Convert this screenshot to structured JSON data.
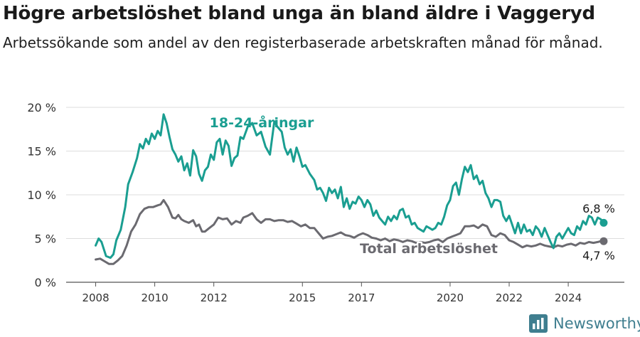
{
  "header": {
    "title": "Högre arbetslöshet bland unga än bland äldre i Vaggeryd",
    "subtitle": "Arbetssökande som andel av den registerbaserade arbetskraften månad för månad."
  },
  "brand": {
    "name": "Newsworthy"
  },
  "colors": {
    "young": "#1a9e91",
    "total": "#6b6a70",
    "grid": "#dddddd",
    "axis": "#444444",
    "brand": "#3f7e8f"
  },
  "chart_data": {
    "type": "line",
    "title": "Högre arbetslöshet bland unga än bland äldre i Vaggeryd",
    "subtitle": "Arbetssökande som andel av den registerbaserade arbetskraften månad för månad.",
    "xlabel": "",
    "ylabel": "",
    "xlim": [
      2007.0,
      2025.9
    ],
    "ylim": [
      0,
      20
    ],
    "grid": true,
    "x_ticks": [
      {
        "value": 2008,
        "label": "2008"
      },
      {
        "value": 2010,
        "label": "2010"
      },
      {
        "value": 2012,
        "label": "2012"
      },
      {
        "value": 2015,
        "label": "2015"
      },
      {
        "value": 2017,
        "label": "2017"
      },
      {
        "value": 2020,
        "label": "2020"
      },
      {
        "value": 2022,
        "label": "2022"
      },
      {
        "value": 2024,
        "label": "2024"
      }
    ],
    "y_ticks": [
      {
        "value": 0,
        "label": "0 %"
      },
      {
        "value": 5,
        "label": "5 %"
      },
      {
        "value": 10,
        "label": "10 %"
      },
      {
        "value": 15,
        "label": "15 %"
      },
      {
        "value": 20,
        "label": "20 %"
      }
    ],
    "series": [
      {
        "name": "18-24-åringar",
        "label": "18-24-åringar",
        "end_label": "6,8 %",
        "color": "#1a9e91",
        "points": [
          [
            2008.0,
            4.2
          ],
          [
            2008.1,
            5.0
          ],
          [
            2008.2,
            4.6
          ],
          [
            2008.35,
            3.0
          ],
          [
            2008.5,
            2.8
          ],
          [
            2008.6,
            3.2
          ],
          [
            2008.7,
            4.8
          ],
          [
            2008.85,
            6.0
          ],
          [
            2009.0,
            8.6
          ],
          [
            2009.1,
            11.2
          ],
          [
            2009.25,
            12.6
          ],
          [
            2009.4,
            14.2
          ],
          [
            2009.5,
            15.8
          ],
          [
            2009.6,
            15.3
          ],
          [
            2009.7,
            16.4
          ],
          [
            2009.8,
            15.8
          ],
          [
            2009.9,
            17.0
          ],
          [
            2010.0,
            16.4
          ],
          [
            2010.1,
            17.3
          ],
          [
            2010.2,
            16.8
          ],
          [
            2010.3,
            19.2
          ],
          [
            2010.4,
            18.2
          ],
          [
            2010.5,
            16.6
          ],
          [
            2010.6,
            15.2
          ],
          [
            2010.7,
            14.6
          ],
          [
            2010.8,
            13.8
          ],
          [
            2010.9,
            14.4
          ],
          [
            2011.0,
            12.8
          ],
          [
            2011.1,
            13.6
          ],
          [
            2011.2,
            12.2
          ],
          [
            2011.3,
            15.1
          ],
          [
            2011.4,
            14.4
          ],
          [
            2011.5,
            12.4
          ],
          [
            2011.6,
            11.6
          ],
          [
            2011.7,
            12.8
          ],
          [
            2011.8,
            13.2
          ],
          [
            2011.9,
            14.6
          ],
          [
            2012.0,
            14.0
          ],
          [
            2012.1,
            16.0
          ],
          [
            2012.2,
            16.4
          ],
          [
            2012.3,
            14.6
          ],
          [
            2012.4,
            16.2
          ],
          [
            2012.5,
            15.6
          ],
          [
            2012.6,
            13.3
          ],
          [
            2012.7,
            14.2
          ],
          [
            2012.8,
            14.5
          ],
          [
            2012.9,
            16.6
          ],
          [
            2013.0,
            16.4
          ],
          [
            2013.15,
            17.8
          ],
          [
            2013.3,
            18.2
          ],
          [
            2013.45,
            16.8
          ],
          [
            2013.6,
            17.2
          ],
          [
            2013.75,
            15.5
          ],
          [
            2013.9,
            14.6
          ],
          [
            2014.05,
            18.4
          ],
          [
            2014.15,
            17.8
          ],
          [
            2014.3,
            17.2
          ],
          [
            2014.4,
            15.4
          ],
          [
            2014.5,
            14.6
          ],
          [
            2014.6,
            15.2
          ],
          [
            2014.7,
            13.8
          ],
          [
            2014.8,
            15.4
          ],
          [
            2014.9,
            14.4
          ],
          [
            2015.0,
            13.2
          ],
          [
            2015.1,
            13.4
          ],
          [
            2015.25,
            12.4
          ],
          [
            2015.4,
            11.7
          ],
          [
            2015.5,
            10.6
          ],
          [
            2015.6,
            10.8
          ],
          [
            2015.7,
            10.2
          ],
          [
            2015.8,
            9.3
          ],
          [
            2015.9,
            10.8
          ],
          [
            2016.0,
            10.2
          ],
          [
            2016.1,
            10.6
          ],
          [
            2016.2,
            9.6
          ],
          [
            2016.3,
            10.9
          ],
          [
            2016.4,
            8.6
          ],
          [
            2016.5,
            9.6
          ],
          [
            2016.6,
            8.4
          ],
          [
            2016.7,
            9.2
          ],
          [
            2016.8,
            9.0
          ],
          [
            2016.9,
            9.8
          ],
          [
            2017.0,
            9.4
          ],
          [
            2017.1,
            8.6
          ],
          [
            2017.2,
            9.4
          ],
          [
            2017.3,
            8.9
          ],
          [
            2017.4,
            7.6
          ],
          [
            2017.5,
            8.2
          ],
          [
            2017.6,
            7.4
          ],
          [
            2017.7,
            7.0
          ],
          [
            2017.8,
            6.6
          ],
          [
            2017.9,
            7.5
          ],
          [
            2018.0,
            7.0
          ],
          [
            2018.1,
            7.6
          ],
          [
            2018.2,
            7.2
          ],
          [
            2018.3,
            8.2
          ],
          [
            2018.4,
            8.4
          ],
          [
            2018.5,
            7.4
          ],
          [
            2018.6,
            7.6
          ],
          [
            2018.7,
            6.6
          ],
          [
            2018.8,
            6.8
          ],
          [
            2018.9,
            6.2
          ],
          [
            2019.0,
            6.0
          ],
          [
            2019.1,
            5.8
          ],
          [
            2019.2,
            6.4
          ],
          [
            2019.3,
            6.2
          ],
          [
            2019.4,
            6.0
          ],
          [
            2019.5,
            6.2
          ],
          [
            2019.6,
            6.8
          ],
          [
            2019.7,
            6.6
          ],
          [
            2019.8,
            7.5
          ],
          [
            2019.9,
            8.8
          ],
          [
            2020.0,
            9.4
          ],
          [
            2020.1,
            11.0
          ],
          [
            2020.2,
            11.4
          ],
          [
            2020.3,
            10.0
          ],
          [
            2020.4,
            11.8
          ],
          [
            2020.5,
            13.2
          ],
          [
            2020.6,
            12.6
          ],
          [
            2020.7,
            13.4
          ],
          [
            2020.8,
            11.8
          ],
          [
            2020.9,
            12.2
          ],
          [
            2021.0,
            11.2
          ],
          [
            2021.1,
            11.6
          ],
          [
            2021.2,
            10.2
          ],
          [
            2021.3,
            9.6
          ],
          [
            2021.4,
            8.6
          ],
          [
            2021.5,
            9.4
          ],
          [
            2021.6,
            9.4
          ],
          [
            2021.7,
            9.2
          ],
          [
            2021.8,
            7.6
          ],
          [
            2021.9,
            7.0
          ],
          [
            2022.0,
            7.6
          ],
          [
            2022.1,
            6.6
          ],
          [
            2022.2,
            5.6
          ],
          [
            2022.3,
            6.8
          ],
          [
            2022.4,
            5.6
          ],
          [
            2022.5,
            6.6
          ],
          [
            2022.6,
            5.8
          ],
          [
            2022.7,
            6.0
          ],
          [
            2022.8,
            5.4
          ],
          [
            2022.9,
            6.4
          ],
          [
            2023.0,
            6.0
          ],
          [
            2023.1,
            5.2
          ],
          [
            2023.2,
            6.2
          ],
          [
            2023.3,
            5.4
          ],
          [
            2023.4,
            4.6
          ],
          [
            2023.5,
            3.9
          ],
          [
            2023.6,
            5.2
          ],
          [
            2023.7,
            5.6
          ],
          [
            2023.8,
            5.0
          ],
          [
            2023.9,
            5.6
          ],
          [
            2024.0,
            6.2
          ],
          [
            2024.1,
            5.6
          ],
          [
            2024.2,
            5.4
          ],
          [
            2024.3,
            6.4
          ],
          [
            2024.4,
            6.0
          ],
          [
            2024.5,
            7.0
          ],
          [
            2024.6,
            6.6
          ],
          [
            2024.7,
            7.6
          ],
          [
            2024.8,
            7.4
          ],
          [
            2024.9,
            6.6
          ],
          [
            2025.0,
            7.4
          ],
          [
            2025.1,
            7.2
          ],
          [
            2025.2,
            6.8
          ]
        ]
      },
      {
        "name": "Total arbetslöshet",
        "label": "Total arbetslöshet",
        "end_label": "4,7 %",
        "color": "#6b6a70",
        "points": [
          [
            2008.0,
            2.6
          ],
          [
            2008.15,
            2.7
          ],
          [
            2008.3,
            2.4
          ],
          [
            2008.45,
            2.1
          ],
          [
            2008.6,
            2.1
          ],
          [
            2008.75,
            2.5
          ],
          [
            2008.9,
            3.0
          ],
          [
            2009.05,
            4.2
          ],
          [
            2009.2,
            5.8
          ],
          [
            2009.35,
            6.6
          ],
          [
            2009.5,
            7.8
          ],
          [
            2009.65,
            8.4
          ],
          [
            2009.8,
            8.6
          ],
          [
            2009.95,
            8.6
          ],
          [
            2010.1,
            8.8
          ],
          [
            2010.2,
            8.9
          ],
          [
            2010.3,
            9.4
          ],
          [
            2010.45,
            8.6
          ],
          [
            2010.6,
            7.4
          ],
          [
            2010.7,
            7.3
          ],
          [
            2010.8,
            7.7
          ],
          [
            2010.9,
            7.2
          ],
          [
            2011.0,
            7.0
          ],
          [
            2011.15,
            6.8
          ],
          [
            2011.3,
            7.1
          ],
          [
            2011.4,
            6.4
          ],
          [
            2011.5,
            6.6
          ],
          [
            2011.6,
            5.8
          ],
          [
            2011.7,
            5.8
          ],
          [
            2011.85,
            6.2
          ],
          [
            2012.0,
            6.6
          ],
          [
            2012.15,
            7.4
          ],
          [
            2012.3,
            7.2
          ],
          [
            2012.45,
            7.3
          ],
          [
            2012.6,
            6.6
          ],
          [
            2012.75,
            7.0
          ],
          [
            2012.9,
            6.8
          ],
          [
            2013.0,
            7.4
          ],
          [
            2013.15,
            7.6
          ],
          [
            2013.3,
            7.9
          ],
          [
            2013.45,
            7.2
          ],
          [
            2013.6,
            6.8
          ],
          [
            2013.75,
            7.2
          ],
          [
            2013.9,
            7.2
          ],
          [
            2014.05,
            7.0
          ],
          [
            2014.2,
            7.1
          ],
          [
            2014.35,
            7.1
          ],
          [
            2014.5,
            6.9
          ],
          [
            2014.65,
            7.0
          ],
          [
            2014.8,
            6.7
          ],
          [
            2014.95,
            6.4
          ],
          [
            2015.1,
            6.6
          ],
          [
            2015.25,
            6.2
          ],
          [
            2015.4,
            6.2
          ],
          [
            2015.55,
            5.6
          ],
          [
            2015.7,
            5.0
          ],
          [
            2015.85,
            5.2
          ],
          [
            2016.0,
            5.3
          ],
          [
            2016.15,
            5.5
          ],
          [
            2016.3,
            5.7
          ],
          [
            2016.45,
            5.4
          ],
          [
            2016.6,
            5.3
          ],
          [
            2016.75,
            5.1
          ],
          [
            2016.9,
            5.4
          ],
          [
            2017.05,
            5.6
          ],
          [
            2017.2,
            5.4
          ],
          [
            2017.35,
            5.1
          ],
          [
            2017.5,
            5.0
          ],
          [
            2017.65,
            4.8
          ],
          [
            2017.8,
            5.0
          ],
          [
            2017.95,
            4.7
          ],
          [
            2018.1,
            4.9
          ],
          [
            2018.25,
            4.8
          ],
          [
            2018.4,
            4.6
          ],
          [
            2018.55,
            4.8
          ],
          [
            2018.7,
            4.7
          ],
          [
            2018.85,
            4.5
          ],
          [
            2019.0,
            4.6
          ],
          [
            2019.15,
            4.5
          ],
          [
            2019.3,
            4.6
          ],
          [
            2019.45,
            4.8
          ],
          [
            2019.6,
            4.9
          ],
          [
            2019.75,
            4.6
          ],
          [
            2019.9,
            5.0
          ],
          [
            2020.05,
            5.2
          ],
          [
            2020.2,
            5.4
          ],
          [
            2020.35,
            5.6
          ],
          [
            2020.5,
            6.4
          ],
          [
            2020.65,
            6.4
          ],
          [
            2020.8,
            6.5
          ],
          [
            2020.95,
            6.2
          ],
          [
            2021.1,
            6.6
          ],
          [
            2021.25,
            6.4
          ],
          [
            2021.4,
            5.4
          ],
          [
            2021.55,
            5.2
          ],
          [
            2021.7,
            5.6
          ],
          [
            2021.85,
            5.4
          ],
          [
            2022.0,
            4.8
          ],
          [
            2022.15,
            4.6
          ],
          [
            2022.3,
            4.3
          ],
          [
            2022.45,
            4.0
          ],
          [
            2022.6,
            4.2
          ],
          [
            2022.75,
            4.1
          ],
          [
            2022.9,
            4.2
          ],
          [
            2023.05,
            4.4
          ],
          [
            2023.2,
            4.2
          ],
          [
            2023.35,
            4.1
          ],
          [
            2023.5,
            4.0
          ],
          [
            2023.65,
            4.2
          ],
          [
            2023.8,
            4.1
          ],
          [
            2023.95,
            4.3
          ],
          [
            2024.1,
            4.4
          ],
          [
            2024.25,
            4.2
          ],
          [
            2024.4,
            4.5
          ],
          [
            2024.55,
            4.4
          ],
          [
            2024.7,
            4.6
          ],
          [
            2024.85,
            4.5
          ],
          [
            2025.0,
            4.6
          ],
          [
            2025.1,
            4.7
          ],
          [
            2025.2,
            4.7
          ]
        ]
      }
    ]
  }
}
